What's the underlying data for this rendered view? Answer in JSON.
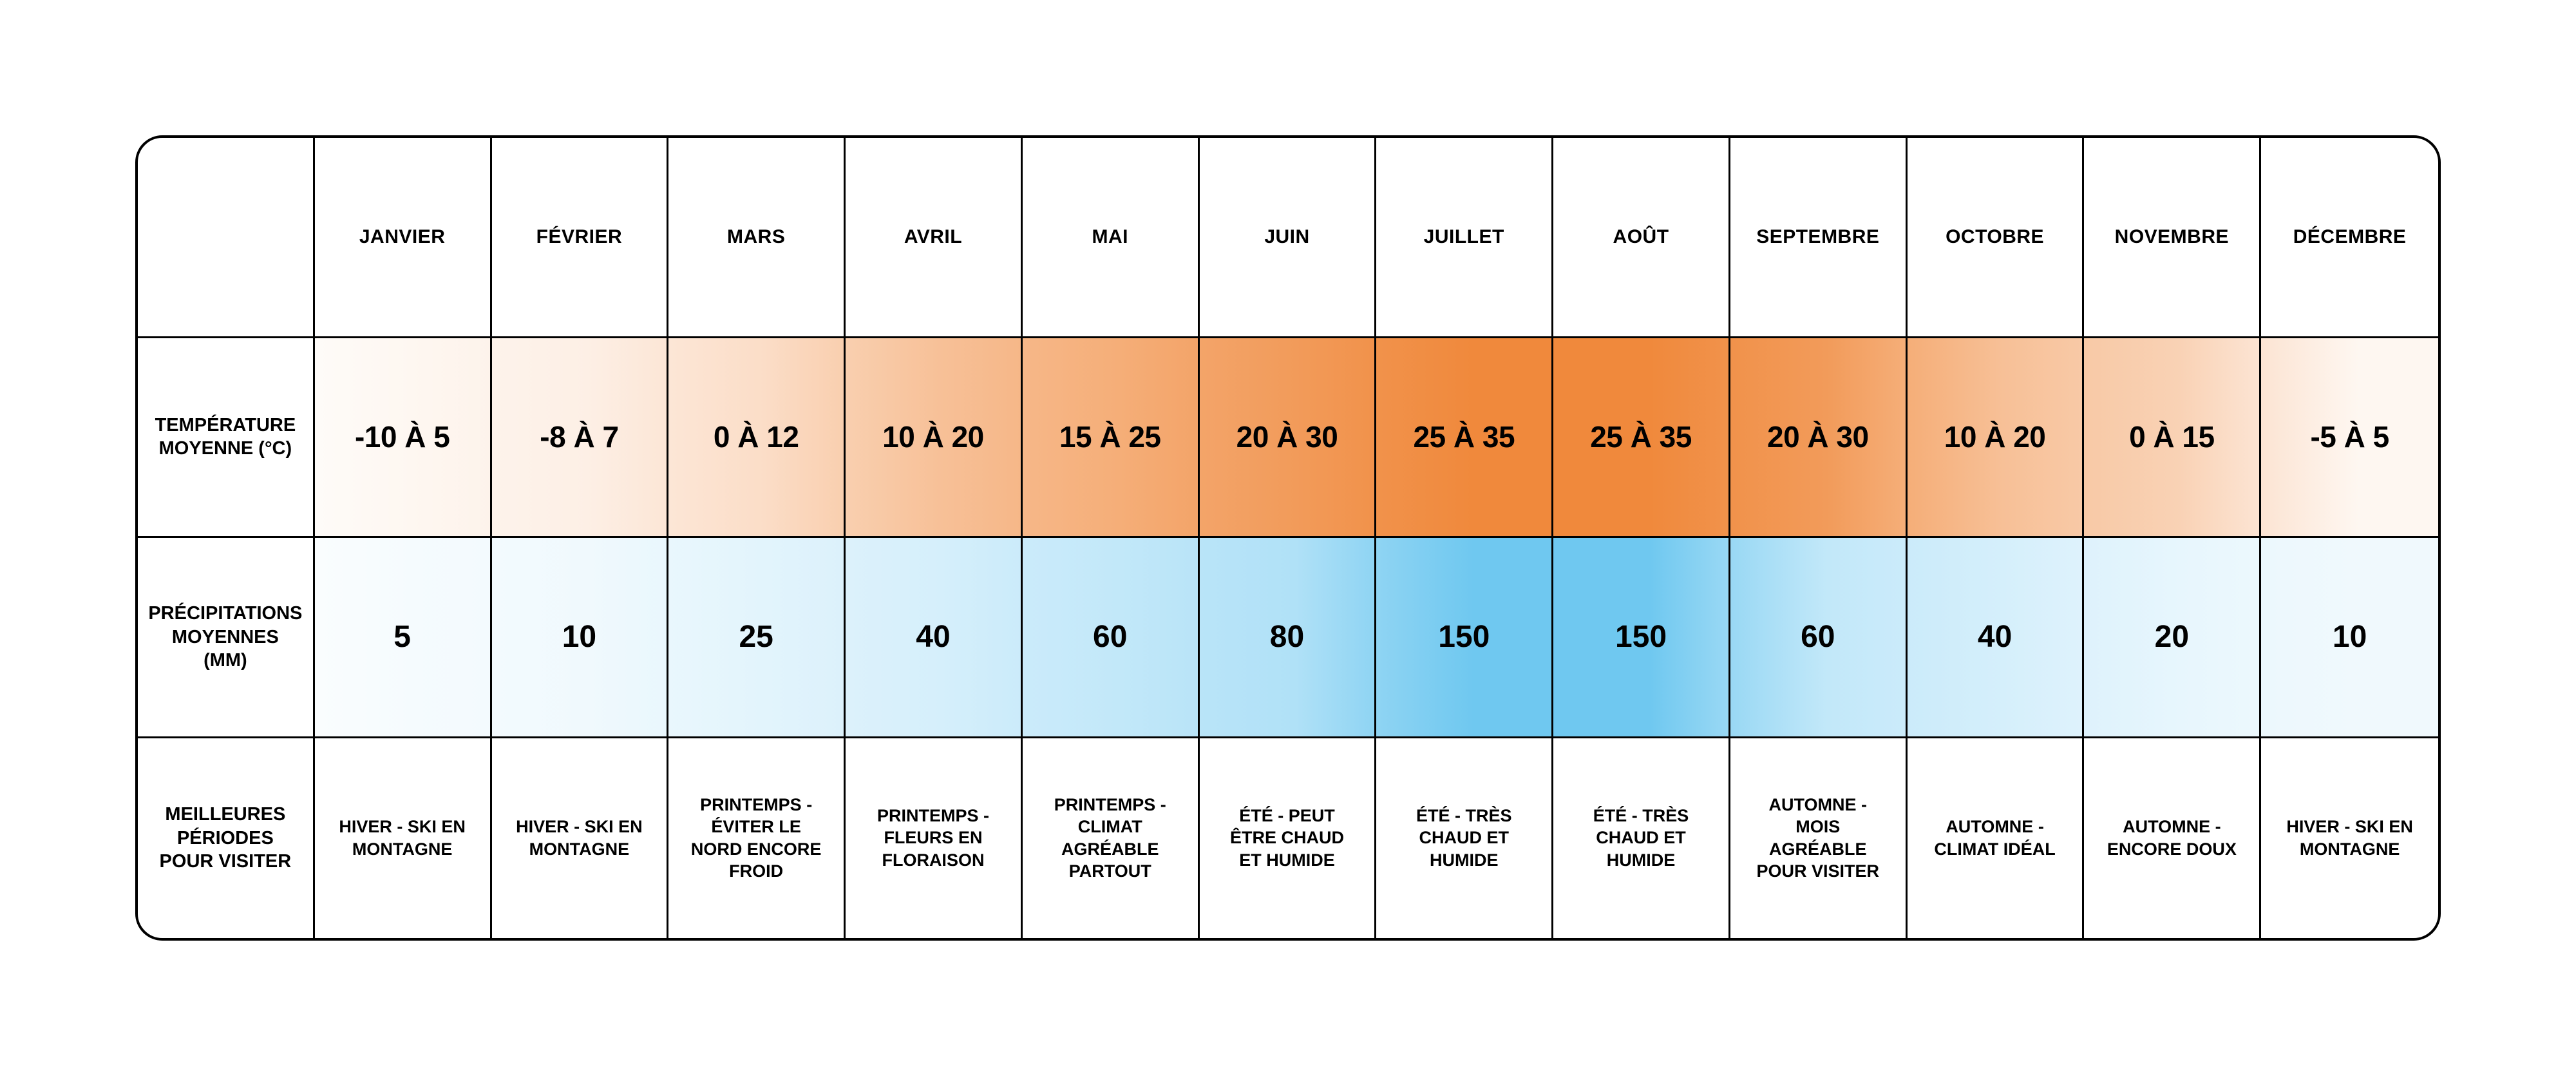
{
  "chart_data": {
    "type": "table",
    "corner_label": "",
    "months": [
      "Janvier",
      "Février",
      "Mars",
      "Avril",
      "Mai",
      "Juin",
      "Juillet",
      "Août",
      "Septembre",
      "Octobre",
      "Novembre",
      "Décembre"
    ],
    "rows": [
      {
        "label": "Température moyenne (°C)",
        "values": [
          "-10 à 5",
          "-8 à 7",
          "0 à 12",
          "10 à 20",
          "15 à 25",
          "20 à 30",
          "25 à 35",
          "25 à 35",
          "20 à 30",
          "10 à 20",
          "0 à 15",
          "-5 à 5"
        ]
      },
      {
        "label": "Précipitations moyennes (mm)",
        "values": [
          "5",
          "10",
          "25",
          "40",
          "60",
          "80",
          "150",
          "150",
          "60",
          "40",
          "20",
          "10"
        ]
      },
      {
        "label": "Meilleures périodes pour visiter",
        "values": [
          "Hiver - ski en montagne",
          "Hiver - ski en montagne",
          "Printemps - éviter le nord encore froid",
          "Printemps - fleurs en floraison",
          "Printemps - climat agréable partout",
          "Été - peut être chaud et humide",
          "Été - très chaud et humide",
          "Été - très chaud et humide",
          "Automne - mois agréable pour visiter",
          "Automne - climat idéal",
          "Automne - encore doux",
          "Hiver - ski en montagne"
        ]
      }
    ],
    "temperature_max": [
      5,
      7,
      12,
      20,
      25,
      30,
      35,
      35,
      30,
      20,
      15,
      5
    ],
    "heat_colors": {
      "temperature": "#f0893c",
      "precipitation": "#6fc8f0"
    }
  }
}
